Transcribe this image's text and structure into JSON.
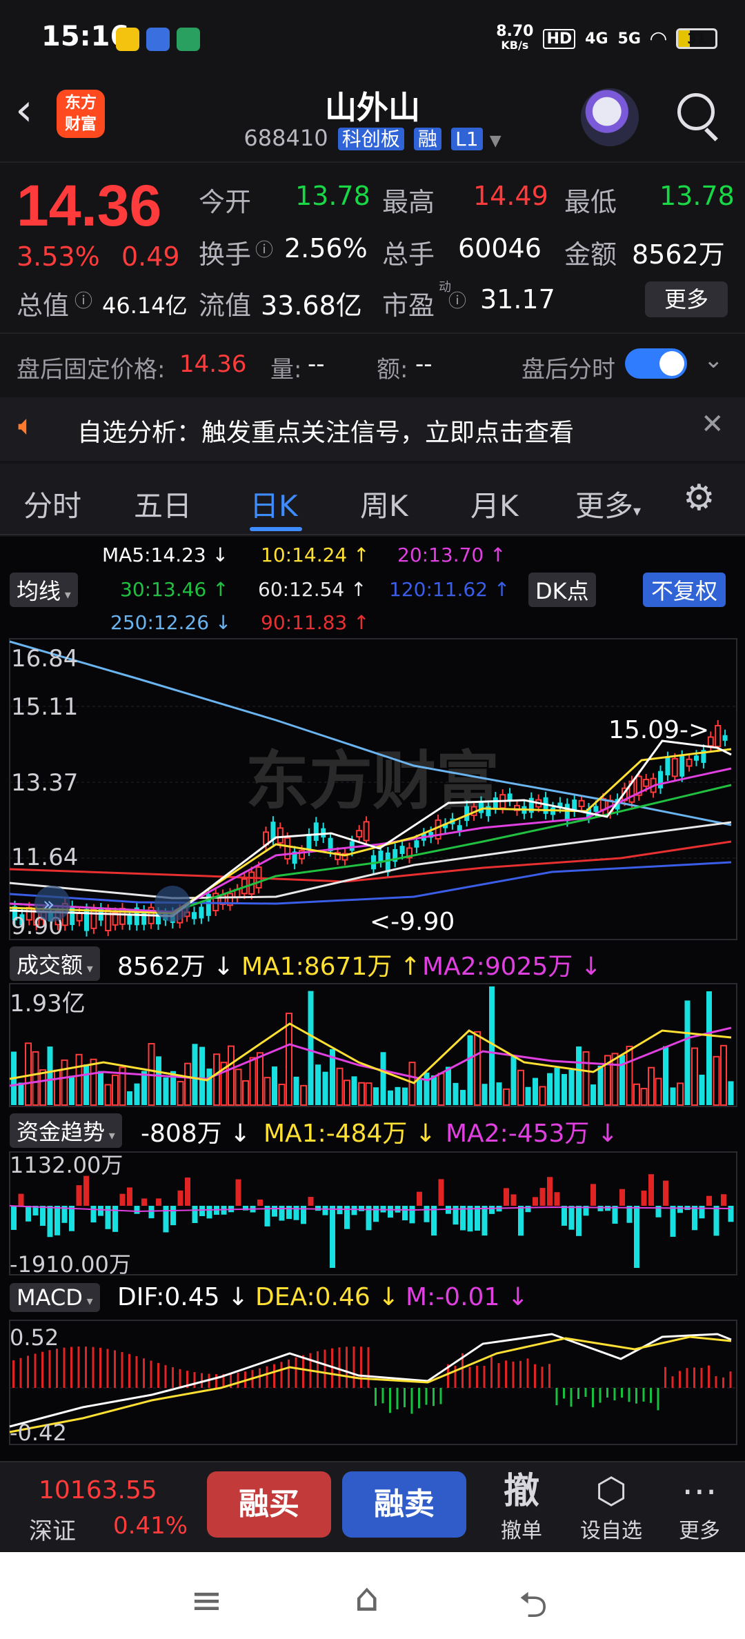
{
  "status_bar": {
    "time": "15:16",
    "net_speed": "8.70",
    "net_unit": "KB/s",
    "hd": "HD",
    "signal1": "4G",
    "signal2": "5G",
    "battery": "31"
  },
  "header": {
    "logo_line1": "东方",
    "logo_line2": "财富",
    "name": "山外山",
    "code": "688410",
    "tag_board": "科创板",
    "tag_margin": "融",
    "tag_level": "L1"
  },
  "quote": {
    "price": "14.36",
    "change_pct": "3.53%",
    "change": "0.49",
    "open_label": "今开",
    "open_value": "13.78",
    "high_label": "最高",
    "high_value": "14.49",
    "low_label": "最低",
    "low_value": "13.78",
    "turnover_label": "换手",
    "turnover_value": "2.56%",
    "volume_label": "总手",
    "volume_value": "60046",
    "amount_label": "金额",
    "amount_value": "8562万",
    "total_cap_label": "总值",
    "total_cap_value": "46.14亿",
    "float_cap_label": "流值",
    "float_cap_value": "33.68亿",
    "pe_label": "市盈",
    "pe_sup": "动",
    "pe_value": "31.17",
    "more": "更多"
  },
  "after_hours": {
    "price_label": "盘后固定价格:",
    "price_value": "14.36",
    "vol_label": "量:",
    "vol_value": "--",
    "amt_label": "额:",
    "amt_value": "--",
    "timeline_label": "盘后分时",
    "timeline_on": true
  },
  "notice": {
    "text": "自选分析：触发重点关注信号，立即点击查看"
  },
  "tabs": [
    {
      "label": "分时"
    },
    {
      "label": "五日"
    },
    {
      "label": "日K",
      "active": true
    },
    {
      "label": "周K"
    },
    {
      "label": "月K"
    },
    {
      "label": "更多"
    }
  ],
  "indicators": {
    "ma_select": "均线",
    "dk_button": "DK点",
    "rights_button": "不复权",
    "ma5": "MA5:14.23 ↓",
    "ma10": "10:14.24 ↑",
    "ma20": "20:13.70 ↑",
    "ma30": "30:13.46 ↑",
    "ma60": "60:12.54 ↑",
    "ma120": "120:11.62 ↑",
    "ma250": "250:12.26 ↓",
    "ma90": "90:11.83 ↑",
    "colors": {
      "ma5": "#ffffff",
      "ma10": "#ffe033",
      "ma20": "#e040e0",
      "ma30": "#20c040",
      "ma60": "#e8e8e8",
      "ma120": "#3a5ee8",
      "ma250": "#6ab4f0",
      "ma90": "#e83030"
    }
  },
  "kline": {
    "y_labels": [
      "16.84",
      "15.11",
      "13.37",
      "11.64",
      "9.90"
    ],
    "high_marker": "15.09->",
    "low_marker": "<-9.90",
    "watermark": "东方财富"
  },
  "volume": {
    "select": "成交额",
    "value": "8562万 ↓",
    "ma1": "MA1:8671万 ↑",
    "ma2": "MA2:9025万 ↓",
    "y_top": "1.93亿"
  },
  "capital": {
    "select": "资金趋势",
    "value": "-808万 ↓",
    "ma1": "MA1:-484万 ↓",
    "ma2": "MA2:-453万 ↓",
    "y_top": "1132.00万",
    "y_bottom": "-1910.00万"
  },
  "macd": {
    "select": "MACD",
    "dif": "DIF:0.45 ↓",
    "dea": "DEA:0.46 ↓",
    "m": "M:-0.01 ↓",
    "y_top": "0.52",
    "y_bottom": "-0.42"
  },
  "toolbar": {
    "index_value": "10163.55",
    "index_name": "深证",
    "index_change": "0.41%",
    "buy": "融买",
    "sell": "融卖",
    "cancel_icon": "撤",
    "cancel_label": "撤单",
    "watch_label": "设自选",
    "more_label": "更多"
  }
}
